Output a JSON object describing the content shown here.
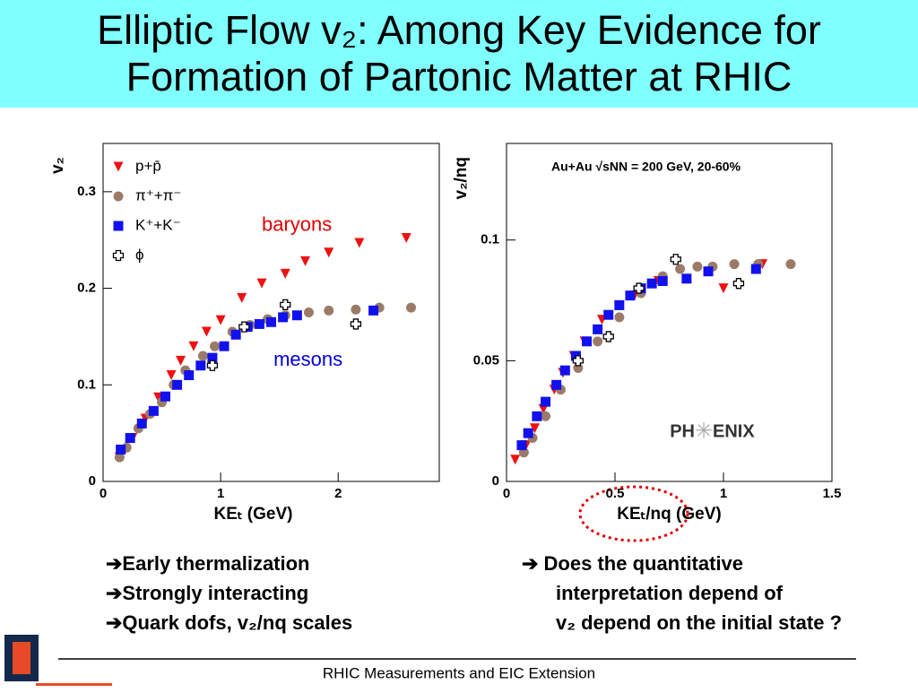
{
  "title": "Elliptic Flow v₂: Among Key Evidence for Formation of Partonic Matter at RHIC",
  "chart_data": [
    {
      "type": "scatter",
      "ylabel": "v₂",
      "xlabel": "KEₜ (GeV)",
      "xlim": [
        0,
        2.86
      ],
      "ylim": [
        0,
        0.35
      ],
      "xticks": [
        0,
        1,
        2
      ],
      "yticks": [
        0,
        0.1,
        0.2,
        0.3
      ],
      "annotations": [
        {
          "text": "baryons",
          "color": "#e00000",
          "x": 1.35,
          "y": 0.265
        },
        {
          "text": "mesons",
          "color": "#0000e0",
          "x": 1.45,
          "y": 0.125
        }
      ],
      "series": [
        {
          "name": "p+p̄",
          "color": "#ee1111",
          "marker": "triangle",
          "x": [
            0.14,
            0.25,
            0.36,
            0.47,
            0.58,
            0.66,
            0.77,
            0.88,
            1.0,
            1.18,
            1.35,
            1.55,
            1.72,
            1.92,
            2.18,
            2.58
          ],
          "values": [
            0.025,
            0.045,
            0.065,
            0.087,
            0.11,
            0.125,
            0.14,
            0.155,
            0.167,
            0.19,
            0.205,
            0.215,
            0.228,
            0.237,
            0.247,
            0.252
          ]
        },
        {
          "name": "π⁺+π⁻",
          "color": "#9b7b68",
          "marker": "circle",
          "x": [
            0.14,
            0.2,
            0.3,
            0.4,
            0.5,
            0.6,
            0.7,
            0.85,
            0.95,
            1.1,
            1.25,
            1.4,
            1.55,
            1.75,
            1.92,
            2.15,
            2.35,
            2.62
          ],
          "values": [
            0.025,
            0.035,
            0.055,
            0.07,
            0.082,
            0.1,
            0.115,
            0.13,
            0.14,
            0.155,
            0.162,
            0.168,
            0.172,
            0.175,
            0.177,
            0.178,
            0.18,
            0.18
          ]
        },
        {
          "name": "K⁺+K⁻",
          "color": "#1111ee",
          "marker": "square",
          "x": [
            0.15,
            0.23,
            0.33,
            0.43,
            0.53,
            0.63,
            0.73,
            0.83,
            0.93,
            1.03,
            1.13,
            1.23,
            1.33,
            1.43,
            1.53,
            1.65,
            2.3
          ],
          "values": [
            0.033,
            0.045,
            0.06,
            0.073,
            0.088,
            0.1,
            0.11,
            0.12,
            0.128,
            0.14,
            0.152,
            0.16,
            0.163,
            0.165,
            0.17,
            0.172,
            0.177
          ]
        },
        {
          "name": "ϕ",
          "color": "#000000",
          "marker": "cross",
          "x": [
            0.93,
            1.2,
            1.55,
            2.15
          ],
          "values": [
            0.12,
            0.16,
            0.183,
            0.163
          ]
        }
      ]
    },
    {
      "type": "scatter",
      "ylabel": "v₂/nq",
      "xlabel": "KEₜ/nq (GeV)",
      "xlim": [
        0,
        1.5
      ],
      "ylim": [
        0,
        0.14
      ],
      "xticks": [
        0,
        0.5,
        1,
        1.5
      ],
      "yticks": [
        0,
        0.05,
        0.1
      ],
      "annotation": "Au+Au √sNN = 200 GeV, 20-60%",
      "logo": [
        "PH",
        "ENIX"
      ],
      "series": [
        {
          "color": "#ee1111",
          "marker": "triangle",
          "x": [
            0.04,
            0.09,
            0.13,
            0.17,
            0.22,
            0.26,
            0.31,
            0.36,
            0.44,
            0.52,
            0.59,
            0.7,
            1.0,
            1.18
          ],
          "values": [
            0.009,
            0.015,
            0.022,
            0.03,
            0.038,
            0.045,
            0.052,
            0.058,
            0.067,
            0.073,
            0.077,
            0.083,
            0.08,
            0.09
          ]
        },
        {
          "color": "#9b7b68",
          "marker": "circle",
          "x": [
            0.08,
            0.12,
            0.18,
            0.25,
            0.33,
            0.42,
            0.52,
            0.62,
            0.72,
            0.8,
            0.88,
            0.95,
            1.05,
            1.16,
            1.31
          ],
          "values": [
            0.012,
            0.018,
            0.027,
            0.038,
            0.047,
            0.058,
            0.068,
            0.078,
            0.085,
            0.088,
            0.089,
            0.089,
            0.09,
            0.09,
            0.09
          ]
        },
        {
          "color": "#1111ee",
          "marker": "square",
          "x": [
            0.07,
            0.1,
            0.14,
            0.18,
            0.23,
            0.27,
            0.32,
            0.37,
            0.42,
            0.47,
            0.52,
            0.57,
            0.62,
            0.67,
            0.72,
            0.83,
            0.93,
            1.15
          ],
          "values": [
            0.015,
            0.02,
            0.027,
            0.033,
            0.04,
            0.046,
            0.052,
            0.058,
            0.063,
            0.069,
            0.073,
            0.077,
            0.08,
            0.082,
            0.083,
            0.084,
            0.087,
            0.088
          ]
        },
        {
          "color": "#000000",
          "marker": "cross",
          "x": [
            0.33,
            0.47,
            0.61,
            0.78,
            1.07
          ],
          "values": [
            0.05,
            0.06,
            0.08,
            0.092,
            0.082
          ]
        }
      ]
    }
  ],
  "bullets_left": [
    "➔Early thermalization",
    "➔Strongly interacting",
    "➔Quark dofs,  v₂/nq scales"
  ],
  "bullets_right": [
    "➔ Does the quantitative",
    "interpretation depend  of",
    "v₂ depend on the initial state ?"
  ],
  "footer": "RHIC Measurements and EIC Extension"
}
